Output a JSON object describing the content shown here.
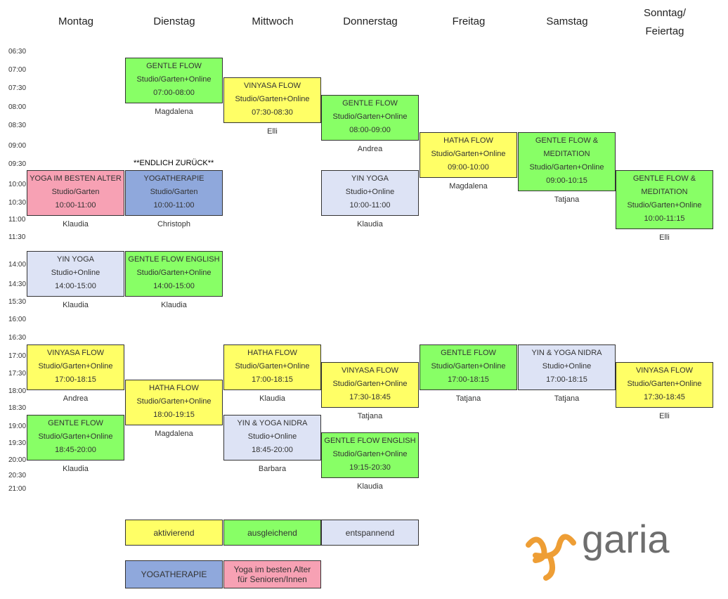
{
  "days": [
    "Montag",
    "Dienstag",
    "Mittwoch",
    "Donnerstag",
    "Freitag",
    "Samstag",
    "Sonntag/\nFeiertag"
  ],
  "times": [
    "06:30",
    "07:00",
    "07:30",
    "08:00",
    "08:30",
    "09:00",
    "09:30",
    "10:00",
    "10:30",
    "11:00",
    "11:30",
    "14:00",
    "14:30",
    "15:30",
    "16:00",
    "16:30",
    "17:00",
    "17:30",
    "18:00",
    "18:30",
    "19:00",
    "19:30",
    "20:00",
    "20:30",
    "21:00"
  ],
  "note": "**ENDLICH ZURÜCK**",
  "classes": [
    [
      "Montag",
      242,
      "r",
      "YOGA IM BESTEN ALTER",
      "Studio/Garten",
      "10:00-11:00",
      "Klaudia"
    ],
    [
      "Montag",
      357,
      "p",
      "YIN YOGA",
      "Studio+Online",
      "14:00-15:00",
      "Klaudia"
    ],
    [
      "Montag",
      490,
      "y",
      "VINYASA FLOW",
      "Studio/Garten+Online",
      "17:00-18:15",
      "Andrea"
    ],
    [
      "Montag",
      590,
      "g",
      "GENTLE FLOW",
      "Studio/Garten+Online",
      "18:45-20:00",
      "Klaudia"
    ],
    [
      "Dienstag",
      82,
      "g",
      "GENTLE FLOW",
      "Studio/Garten+Online",
      "07:00-08:00",
      "Magdalena"
    ],
    [
      "Dienstag",
      242,
      "b",
      "YOGATHERAPIE",
      "Studio/Garten",
      "10:00-11:00",
      "Christoph"
    ],
    [
      "Dienstag",
      357,
      "g",
      "GENTLE FLOW ENGLISH",
      "Studio/Garten+Online",
      "14:00-15:00",
      "Klaudia"
    ],
    [
      "Dienstag",
      540,
      "y",
      "HATHA FLOW",
      "Studio/Garten+Online",
      "18:00-19:15",
      "Magdalena"
    ],
    [
      "Mittwoch",
      110,
      "y",
      "VINYASA FLOW",
      "Studio/Garten+Online",
      "07:30-08:30",
      "Elli"
    ],
    [
      "Mittwoch",
      490,
      "y",
      "HATHA FLOW",
      "Studio/Garten+Online",
      "17:00-18:15",
      "Klaudia"
    ],
    [
      "Mittwoch",
      590,
      "p",
      "YIN & YOGA NIDRA",
      "Studio+Online",
      "18:45-20:00",
      "Barbara"
    ],
    [
      "Donnerstag",
      135,
      "g",
      "GENTLE FLOW",
      "Studio/Garten+Online",
      "08:00-09:00",
      "Andrea"
    ],
    [
      "Donnerstag",
      242,
      "p",
      "YIN YOGA",
      "Studio+Online",
      "10:00-11:00",
      "Klaudia"
    ],
    [
      "Donnerstag",
      515,
      "y",
      "VINYASA FLOW",
      "Studio/Garten+Online",
      "17:30-18:45",
      "Tatjana"
    ],
    [
      "Donnerstag",
      615,
      "g",
      "GENTLE FLOW ENGLISH",
      "Studio/Garten+Online",
      "19:15-20:30",
      "Klaudia"
    ],
    [
      "Freitag",
      188,
      "y",
      "HATHA FLOW",
      "Studio/Garten+Online",
      "09:00-10:00",
      "Magdalena"
    ],
    [
      "Freitag",
      490,
      "g",
      "GENTLE FLOW",
      "Studio/Garten+Online",
      "17:00-18:15",
      "Tatjana"
    ],
    [
      "Samstag",
      188,
      "g",
      "GENTLE FLOW &\nMEDITATION",
      "Studio/Garten+Online",
      "09:00-10:15",
      "Tatjana"
    ],
    [
      "Samstag",
      490,
      "p",
      "YIN & YOGA NIDRA",
      "Studio+Online",
      "17:00-18:15",
      "Tatjana"
    ],
    [
      "Sonntag/\nFeiertag",
      242,
      "g",
      "GENTLE FLOW &\nMEDITATION",
      "Studio/Garten+Online",
      "10:00-11:15",
      "Elli"
    ],
    [
      "Sonntag/\nFeiertag",
      515,
      "y",
      "VINYASA FLOW",
      "Studio/Garten+Online",
      "17:30-18:45",
      "Elli"
    ]
  ],
  "legend": {
    "a": "aktivierend",
    "b": "ausgleichend",
    "c": "entspannend",
    "d": "YOGATHERAPIE",
    "e": "Yoga im besten Alter\nfür Senioren/Innen"
  },
  "logo": "garia"
}
